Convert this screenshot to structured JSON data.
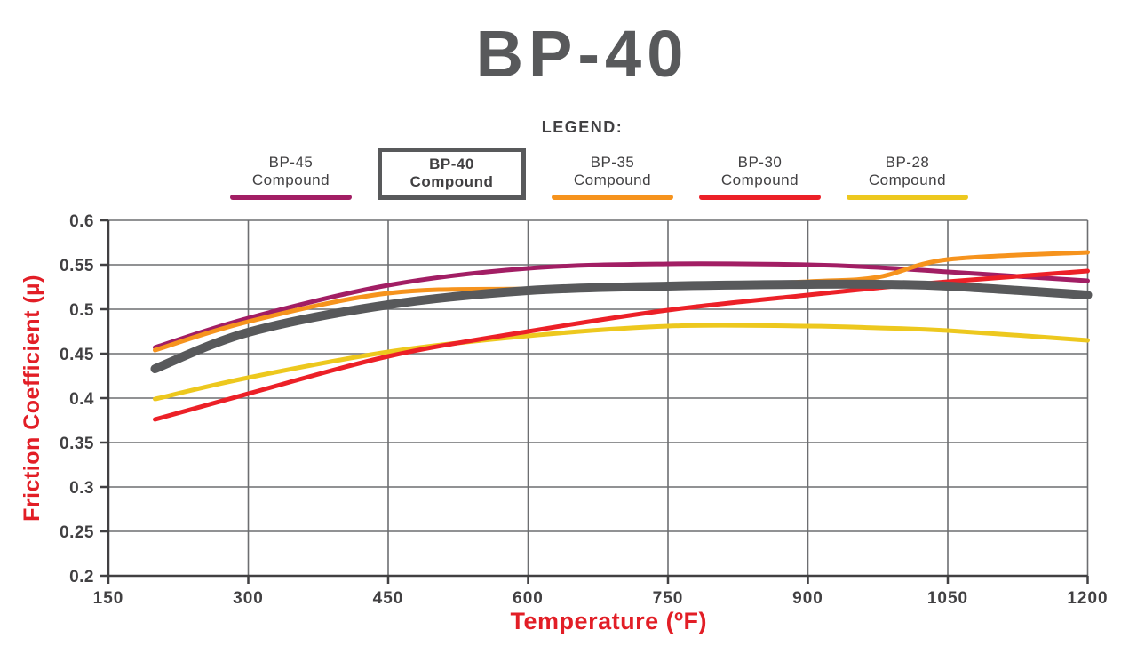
{
  "title": "BP-40",
  "legend": {
    "heading": "LEGEND:",
    "items": [
      {
        "line1": "BP-45",
        "line2": "Compound",
        "color": "#A21E64",
        "boxed": false
      },
      {
        "line1": "BP-40",
        "line2": "Compound",
        "color": "#58595B",
        "boxed": true
      },
      {
        "line1": "BP-35",
        "line2": "Compound",
        "color": "#F6931D",
        "boxed": false
      },
      {
        "line1": "BP-30",
        "line2": "Compound",
        "color": "#EC2027",
        "boxed": false
      },
      {
        "line1": "BP-28",
        "line2": "Compound",
        "color": "#EDC81E",
        "boxed": false
      }
    ]
  },
  "chart_data": {
    "type": "line",
    "title": "BP-40",
    "xlabel": "Temperature (ºF)",
    "ylabel": "Friction Coefficient (µ)",
    "xlim": [
      150,
      1200
    ],
    "ylim": [
      0.2,
      0.6
    ],
    "xticks": [
      150,
      300,
      450,
      600,
      750,
      900,
      1050,
      1200
    ],
    "xtick_labels": [
      "150",
      "300",
      "450",
      "600",
      "750",
      "900",
      "1050",
      "1200"
    ],
    "yticks": [
      0.2,
      0.25,
      0.3,
      0.35,
      0.4,
      0.45,
      0.5,
      0.55,
      0.6
    ],
    "ytick_labels": [
      "0.2",
      "0.25",
      "0.3",
      "0.35",
      "0.4",
      "0.45",
      "0.5",
      "0.55",
      "0.6"
    ],
    "grid": true,
    "legend_position": "top",
    "x": [
      200,
      300,
      450,
      600,
      750,
      900,
      975,
      1050,
      1200
    ],
    "series": [
      {
        "name": "BP-45 Compound",
        "color": "#A21E64",
        "width": 5,
        "values": [
          0.457,
          0.49,
          0.527,
          0.546,
          0.551,
          0.55,
          0.547,
          0.542,
          0.532
        ]
      },
      {
        "name": "BP-28 Compound",
        "color": "#EDC81E",
        "width": 5,
        "values": [
          0.399,
          0.423,
          0.452,
          0.47,
          0.481,
          0.481,
          0.479,
          0.476,
          0.465
        ]
      },
      {
        "name": "BP-35 Compound",
        "color": "#F6931D",
        "width": 5,
        "values": [
          0.454,
          0.486,
          0.518,
          0.523,
          0.524,
          0.531,
          0.536,
          0.556,
          0.564
        ]
      },
      {
        "name": "BP-30 Compound",
        "color": "#EC2027",
        "width": 5,
        "values": [
          0.376,
          0.405,
          0.447,
          0.475,
          0.499,
          0.516,
          0.524,
          0.531,
          0.543
        ]
      },
      {
        "name": "BP-40 Compound",
        "color": "#58595B",
        "width": 10,
        "values": [
          0.433,
          0.474,
          0.505,
          0.521,
          0.526,
          0.528,
          0.528,
          0.526,
          0.516
        ]
      }
    ],
    "axis_color": "#414042",
    "grid_color": "#6D6E71",
    "axis_title_color": "#E21E26",
    "tick_label_color": "#414042"
  }
}
